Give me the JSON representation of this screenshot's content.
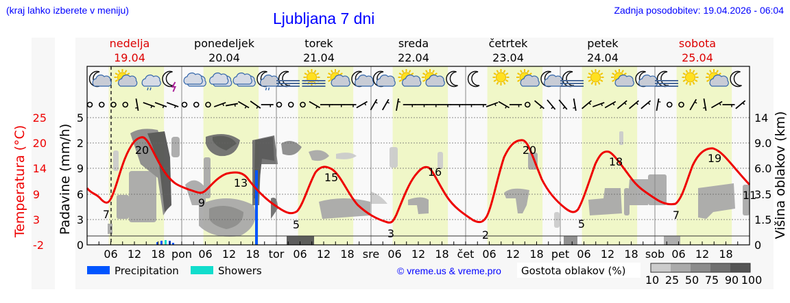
{
  "header": {
    "subtitle": "(kraj lahko izberete v meniju)",
    "title": "Ljubljana 7 dni",
    "updated": "Zadnja posodobitev: 19.04.2026 - 06:04"
  },
  "days": [
    {
      "name": "nedelja",
      "date": "19.04",
      "weekend": true
    },
    {
      "name": "ponedeljek",
      "date": "20.04",
      "weekend": false
    },
    {
      "name": "torek",
      "date": "21.04",
      "weekend": false
    },
    {
      "name": "sreda",
      "date": "22.04",
      "weekend": false
    },
    {
      "name": "četrtek",
      "date": "23.04",
      "weekend": false
    },
    {
      "name": "petek",
      "date": "24.04",
      "weekend": false
    },
    {
      "name": "sobota",
      "date": "25.04",
      "weekend": true
    }
  ],
  "axes": {
    "temperature_title": "Temperatura (°C)",
    "precip_title": "Padavine (mm/h)",
    "cloud_height_title": "Višina oblakov (km)",
    "temperature_ticks": [
      "25",
      "20",
      "14",
      "9",
      "3",
      "-2"
    ],
    "precip_ticks": [
      "5",
      "2",
      "9",
      "6",
      "3",
      "0"
    ],
    "cloud_height_ticks": [
      "14",
      "9.0",
      "6.0",
      "3.5",
      "1.5",
      "0"
    ],
    "x_ticks": [
      "06",
      "12",
      "18",
      "pon",
      "06",
      "12",
      "18",
      "tor",
      "06",
      "12",
      "18",
      "sre",
      "06",
      "12",
      "18",
      "čet",
      "06",
      "12",
      "18",
      "pet",
      "06",
      "12",
      "18",
      "sob",
      "06",
      "12",
      "18"
    ]
  },
  "legend": {
    "precipitation_label": "Precipitation",
    "showers_label": "Showers",
    "precipitation_color": "#0055ff",
    "showers_color": "#11ddcc",
    "credit": "© vreme.us & vreme.pro",
    "cloud_density_title": "Gostota oblakov (%)",
    "cloud_density_ticks": [
      "10",
      "25",
      "50",
      "75",
      "90",
      "100"
    ],
    "cloud_density_colors": [
      "#cccccc",
      "#aaaaaa",
      "#8c8c8c",
      "#707070",
      "#555555"
    ]
  },
  "colors": {
    "temperature_line": "#ee0000",
    "weekend_text": "#dd0000",
    "daylight_band": "#f0f7c8",
    "header_text": "#0000ff"
  },
  "weather_icons": [
    "moon-cloud",
    "sun-cloud",
    "cloud-drizzle",
    "moon-thunder",
    "cloud",
    "cloud",
    "cloud",
    "moon-cloud-drizzle",
    "moon-fog",
    "sun-fog",
    "sun-cloud",
    "moon-cloud",
    "moon-cloud",
    "sun-cloud",
    "sun-cloud",
    "moon",
    "moon",
    "sun",
    "sun-cloud",
    "moon-cloud",
    "moon-fog",
    "sun",
    "sun-cloud",
    "moon-cloud",
    "moon-fog",
    "sun",
    "sun-cloud",
    "moon"
  ],
  "chart_data": {
    "type": "line",
    "title": "Ljubljana 7 dni",
    "xlabel": "",
    "ylabel": "Temperatura (°C)",
    "ylim": [
      -2,
      25
    ],
    "grid": true,
    "series": [
      {
        "name": "Temperatura (°C)",
        "labels": [
          {
            "day": "19.04",
            "kind": "min",
            "value": 7
          },
          {
            "day": "19.04",
            "kind": "max",
            "value": 20
          },
          {
            "day": "20.04",
            "kind": "min",
            "value": 9
          },
          {
            "day": "20.04",
            "kind": "max",
            "value": 13
          },
          {
            "day": "21.04",
            "kind": "min",
            "value": 5
          },
          {
            "day": "21.04",
            "kind": "max",
            "value": 15
          },
          {
            "day": "22.04",
            "kind": "min",
            "value": 3
          },
          {
            "day": "22.04",
            "kind": "max",
            "value": 16
          },
          {
            "day": "23.04",
            "kind": "min",
            "value": 2
          },
          {
            "day": "23.04",
            "kind": "max",
            "value": 20
          },
          {
            "day": "24.04",
            "kind": "min",
            "value": 5
          },
          {
            "day": "24.04",
            "kind": "max",
            "value": 18
          },
          {
            "day": "25.04",
            "kind": "min",
            "value": 7
          },
          {
            "day": "25.04",
            "kind": "max",
            "value": 19
          },
          {
            "day": "25.04",
            "kind": "end",
            "value": 11
          }
        ]
      },
      {
        "name": "Precipitation (mm/h)",
        "points": [
          {
            "time": "19.04 17h",
            "value": 0.3
          },
          {
            "time": "19.04 18h",
            "value": 0.6
          },
          {
            "time": "19.04 20h",
            "value": 0.6
          },
          {
            "time": "19.04 21h",
            "value": 0.3
          },
          {
            "time": "20.04 19h",
            "value": 4.0
          }
        ]
      },
      {
        "name": "Showers (mm/h)",
        "points": [
          {
            "time": "19.04 19h",
            "value": 0.7
          }
        ]
      }
    ]
  }
}
